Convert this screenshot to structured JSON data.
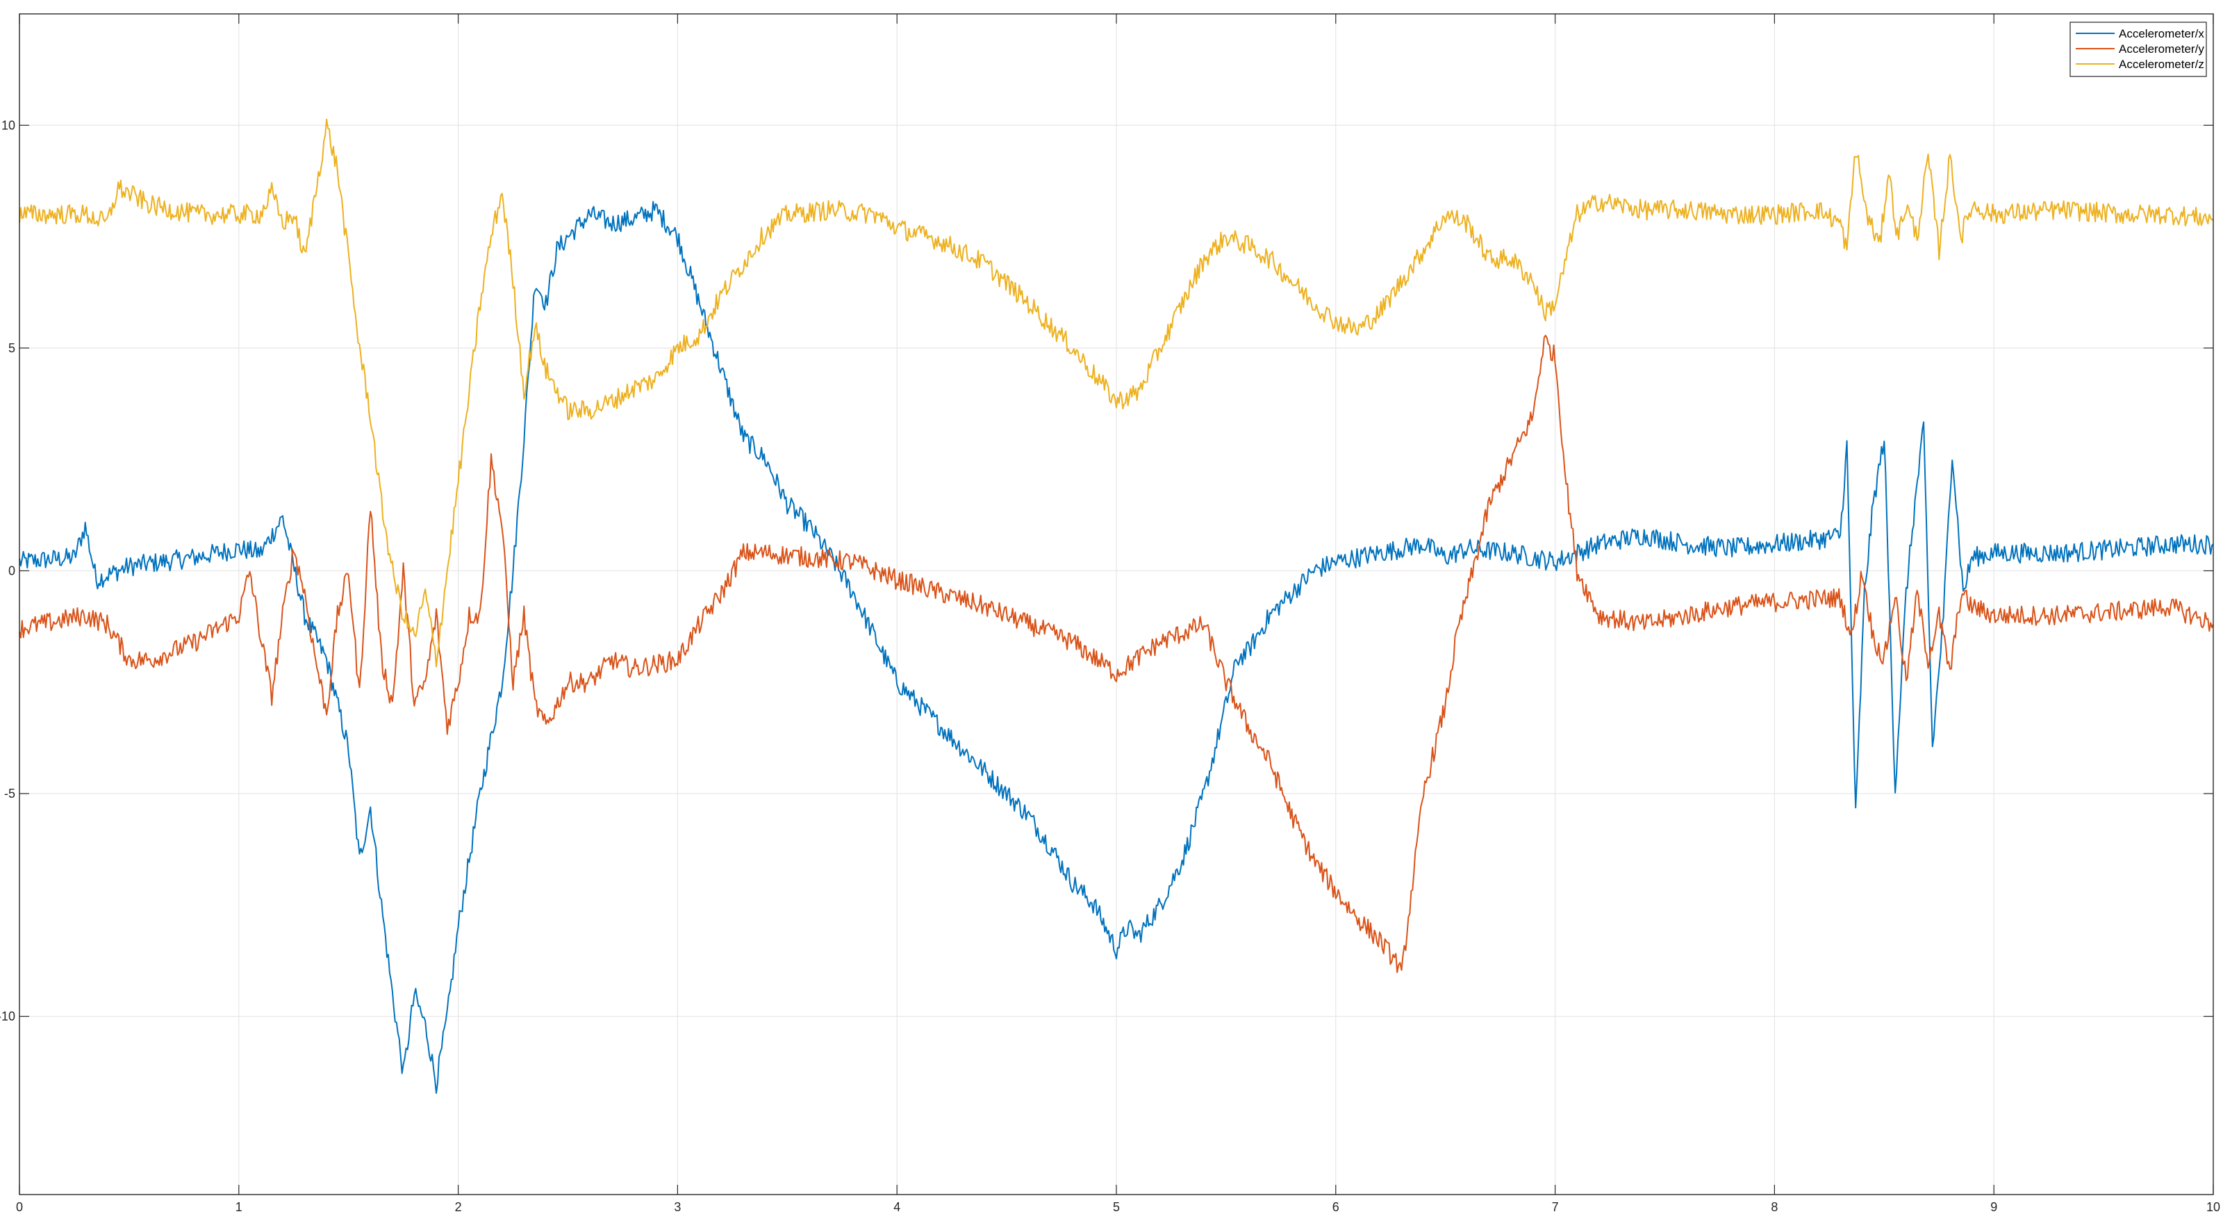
{
  "chart_data": {
    "type": "line",
    "xlim": [
      0,
      10
    ],
    "ylim": [
      -14,
      12.5
    ],
    "grid": true,
    "legend_placement": "top-right",
    "x_ticks": [
      0,
      1,
      2,
      3,
      4,
      5,
      6,
      7,
      8,
      9,
      10
    ],
    "x_tick_labels": [
      "0",
      "1",
      "2",
      "3",
      "4",
      "5",
      "6",
      "7",
      "8",
      "9",
      "10"
    ],
    "y_ticks": [
      10,
      5,
      0,
      -5,
      -10
    ],
    "y_tick_labels": [
      "10",
      "5",
      "0",
      "-5",
      "-10"
    ],
    "series": [
      {
        "name": "Accelerometer/x",
        "color": "#0072BD",
        "points": [
          [
            0,
            0.2
          ],
          [
            0.25,
            0.3
          ],
          [
            0.3,
            1.0
          ],
          [
            0.35,
            -0.2
          ],
          [
            0.5,
            0.1
          ],
          [
            0.8,
            0.3
          ],
          [
            1.0,
            0.5
          ],
          [
            1.1,
            0.4
          ],
          [
            1.2,
            1.2
          ],
          [
            1.3,
            -1.0
          ],
          [
            1.4,
            -2.0
          ],
          [
            1.5,
            -4.0
          ],
          [
            1.55,
            -6.5
          ],
          [
            1.6,
            -5.3
          ],
          [
            1.65,
            -7.5
          ],
          [
            1.7,
            -9.5
          ],
          [
            1.75,
            -11.3
          ],
          [
            1.8,
            -9.5
          ],
          [
            1.85,
            -10.2
          ],
          [
            1.9,
            -11.5
          ],
          [
            1.95,
            -10.0
          ],
          [
            2.0,
            -8.0
          ],
          [
            2.05,
            -6.5
          ],
          [
            2.1,
            -5.0
          ],
          [
            2.2,
            -2.5
          ],
          [
            2.25,
            0.0
          ],
          [
            2.3,
            3.0
          ],
          [
            2.35,
            6.5
          ],
          [
            2.4,
            6.0
          ],
          [
            2.45,
            7.2
          ],
          [
            2.5,
            7.5
          ],
          [
            2.6,
            8.0
          ],
          [
            2.7,
            7.8
          ],
          [
            2.8,
            7.9
          ],
          [
            2.9,
            8.1
          ],
          [
            3.0,
            7.5
          ],
          [
            3.1,
            6.0
          ],
          [
            3.2,
            4.5
          ],
          [
            3.3,
            3.0
          ],
          [
            3.4,
            2.5
          ],
          [
            3.5,
            1.5
          ],
          [
            3.6,
            1.0
          ],
          [
            3.7,
            0.3
          ],
          [
            3.8,
            -0.5
          ],
          [
            3.9,
            -1.5
          ],
          [
            4.0,
            -2.5
          ],
          [
            4.1,
            -3.0
          ],
          [
            4.2,
            -3.5
          ],
          [
            4.3,
            -4.0
          ],
          [
            4.4,
            -4.5
          ],
          [
            4.5,
            -5.0
          ],
          [
            4.6,
            -5.5
          ],
          [
            4.7,
            -6.2
          ],
          [
            4.8,
            -7.0
          ],
          [
            4.9,
            -7.5
          ],
          [
            5.0,
            -8.5
          ],
          [
            5.05,
            -8.0
          ],
          [
            5.1,
            -8.2
          ],
          [
            5.2,
            -7.5
          ],
          [
            5.3,
            -6.5
          ],
          [
            5.4,
            -5.0
          ],
          [
            5.45,
            -4.0
          ],
          [
            5.5,
            -3.0
          ],
          [
            5.55,
            -2.0
          ],
          [
            5.6,
            -1.8
          ],
          [
            5.7,
            -1.0
          ],
          [
            5.8,
            -0.5
          ],
          [
            5.9,
            0.0
          ],
          [
            6.0,
            0.2
          ],
          [
            6.2,
            0.4
          ],
          [
            6.4,
            0.6
          ],
          [
            6.5,
            0.3
          ],
          [
            6.6,
            0.5
          ],
          [
            6.8,
            0.4
          ],
          [
            7.0,
            0.2
          ],
          [
            7.2,
            0.6
          ],
          [
            7.4,
            0.8
          ],
          [
            7.6,
            0.6
          ],
          [
            7.8,
            0.5
          ],
          [
            8.0,
            0.6
          ],
          [
            8.2,
            0.7
          ],
          [
            8.3,
            0.8
          ],
          [
            8.33,
            2.8
          ],
          [
            8.37,
            -5.5
          ],
          [
            8.41,
            -0.5
          ],
          [
            8.45,
            1.5
          ],
          [
            8.5,
            3.0
          ],
          [
            8.55,
            -4.9
          ],
          [
            8.6,
            -0.5
          ],
          [
            8.64,
            1.5
          ],
          [
            8.68,
            3.2
          ],
          [
            8.72,
            -4.0
          ],
          [
            8.77,
            -1.0
          ],
          [
            8.81,
            2.7
          ],
          [
            8.86,
            -0.5
          ],
          [
            8.9,
            0.3
          ],
          [
            9.0,
            0.4
          ],
          [
            9.3,
            0.4
          ],
          [
            9.6,
            0.5
          ],
          [
            9.8,
            0.6
          ],
          [
            10.0,
            0.6
          ]
        ]
      },
      {
        "name": "Accelerometer/y",
        "color": "#D95319",
        "points": [
          [
            0,
            -1.3
          ],
          [
            0.3,
            -1.0
          ],
          [
            0.4,
            -1.2
          ],
          [
            0.5,
            -2.0
          ],
          [
            0.6,
            -2.0
          ],
          [
            0.8,
            -1.6
          ],
          [
            1.0,
            -1.0
          ],
          [
            1.05,
            0.0
          ],
          [
            1.1,
            -1.5
          ],
          [
            1.15,
            -2.8
          ],
          [
            1.2,
            -1.0
          ],
          [
            1.25,
            0.5
          ],
          [
            1.3,
            -0.5
          ],
          [
            1.35,
            -2.0
          ],
          [
            1.4,
            -3.2
          ],
          [
            1.45,
            -1.0
          ],
          [
            1.5,
            0.0
          ],
          [
            1.55,
            -2.8
          ],
          [
            1.6,
            1.5
          ],
          [
            1.65,
            -2.0
          ],
          [
            1.7,
            -3.0
          ],
          [
            1.75,
            0.0
          ],
          [
            1.8,
            -3.0
          ],
          [
            1.85,
            -2.5
          ],
          [
            1.9,
            -1.0
          ],
          [
            1.95,
            -3.5
          ],
          [
            2.0,
            -2.5
          ],
          [
            2.05,
            -1.0
          ],
          [
            2.1,
            -1.0
          ],
          [
            2.15,
            2.5
          ],
          [
            2.2,
            1.0
          ],
          [
            2.25,
            -2.5
          ],
          [
            2.3,
            -1.0
          ],
          [
            2.35,
            -3.0
          ],
          [
            2.4,
            -3.5
          ],
          [
            2.5,
            -2.5
          ],
          [
            2.6,
            -2.5
          ],
          [
            2.7,
            -2.0
          ],
          [
            2.8,
            -2.2
          ],
          [
            3.0,
            -2.0
          ],
          [
            3.1,
            -1.2
          ],
          [
            3.2,
            -0.5
          ],
          [
            3.3,
            0.4
          ],
          [
            3.4,
            0.4
          ],
          [
            3.6,
            0.3
          ],
          [
            3.8,
            0.2
          ],
          [
            4.0,
            -0.2
          ],
          [
            4.2,
            -0.5
          ],
          [
            4.4,
            -0.8
          ],
          [
            4.6,
            -1.2
          ],
          [
            4.8,
            -1.6
          ],
          [
            5.0,
            -2.3
          ],
          [
            5.2,
            -1.6
          ],
          [
            5.4,
            -1.2
          ],
          [
            5.5,
            -2.5
          ],
          [
            5.6,
            -3.5
          ],
          [
            5.7,
            -4.3
          ],
          [
            5.8,
            -5.5
          ],
          [
            5.9,
            -6.5
          ],
          [
            6.0,
            -7.2
          ],
          [
            6.1,
            -7.8
          ],
          [
            6.2,
            -8.3
          ],
          [
            6.28,
            -8.8
          ],
          [
            6.3,
            -9.1
          ],
          [
            6.35,
            -7.0
          ],
          [
            6.4,
            -5.0
          ],
          [
            6.5,
            -3.0
          ],
          [
            6.55,
            -1.5
          ],
          [
            6.6,
            -0.5
          ],
          [
            6.7,
            1.5
          ],
          [
            6.8,
            2.5
          ],
          [
            6.9,
            3.5
          ],
          [
            6.95,
            5.2
          ],
          [
            7.0,
            4.8
          ],
          [
            7.05,
            2.0
          ],
          [
            7.1,
            0.0
          ],
          [
            7.2,
            -1.0
          ],
          [
            7.4,
            -1.2
          ],
          [
            7.6,
            -1.0
          ],
          [
            7.8,
            -0.8
          ],
          [
            8.0,
            -0.7
          ],
          [
            8.3,
            -0.6
          ],
          [
            8.35,
            -1.5
          ],
          [
            8.4,
            0.0
          ],
          [
            8.45,
            -1.5
          ],
          [
            8.5,
            -2.0
          ],
          [
            8.55,
            -0.5
          ],
          [
            8.6,
            -2.5
          ],
          [
            8.65,
            -0.5
          ],
          [
            8.7,
            -2.0
          ],
          [
            8.75,
            -1.0
          ],
          [
            8.8,
            -2.3
          ],
          [
            8.85,
            -0.5
          ],
          [
            8.9,
            -0.8
          ],
          [
            9.0,
            -1.0
          ],
          [
            9.3,
            -1.0
          ],
          [
            9.6,
            -0.9
          ],
          [
            9.8,
            -0.8
          ],
          [
            10.0,
            -1.2
          ]
        ]
      },
      {
        "name": "Accelerometer/z",
        "color": "#EDB120",
        "points": [
          [
            0,
            8.0
          ],
          [
            0.3,
            8.0
          ],
          [
            0.4,
            7.8
          ],
          [
            0.45,
            8.6
          ],
          [
            0.6,
            8.2
          ],
          [
            0.8,
            8.0
          ],
          [
            1.0,
            8.0
          ],
          [
            1.1,
            8.0
          ],
          [
            1.15,
            8.5
          ],
          [
            1.2,
            7.8
          ],
          [
            1.25,
            8.0
          ],
          [
            1.3,
            7.0
          ],
          [
            1.35,
            8.5
          ],
          [
            1.4,
            10.0
          ],
          [
            1.45,
            9.0
          ],
          [
            1.5,
            7.0
          ],
          [
            1.55,
            5.0
          ],
          [
            1.6,
            3.5
          ],
          [
            1.65,
            1.5
          ],
          [
            1.7,
            0.0
          ],
          [
            1.75,
            -1.0
          ],
          [
            1.8,
            -1.5
          ],
          [
            1.85,
            -0.5
          ],
          [
            1.9,
            -2.0
          ],
          [
            1.95,
            0.0
          ],
          [
            2.0,
            2.0
          ],
          [
            2.05,
            4.0
          ],
          [
            2.1,
            6.0
          ],
          [
            2.15,
            7.5
          ],
          [
            2.2,
            8.5
          ],
          [
            2.25,
            6.5
          ],
          [
            2.3,
            4.0
          ],
          [
            2.35,
            5.5
          ],
          [
            2.4,
            4.5
          ],
          [
            2.5,
            3.6
          ],
          [
            2.6,
            3.6
          ],
          [
            2.7,
            3.8
          ],
          [
            2.8,
            4.1
          ],
          [
            2.9,
            4.3
          ],
          [
            3.0,
            5.0
          ],
          [
            3.1,
            5.3
          ],
          [
            3.2,
            6.2
          ],
          [
            3.3,
            6.9
          ],
          [
            3.4,
            7.6
          ],
          [
            3.5,
            8.0
          ],
          [
            3.7,
            8.1
          ],
          [
            3.9,
            8.0
          ],
          [
            4.0,
            7.7
          ],
          [
            4.2,
            7.4
          ],
          [
            4.4,
            6.9
          ],
          [
            4.6,
            6.0
          ],
          [
            4.8,
            5.0
          ],
          [
            5.0,
            3.8
          ],
          [
            5.1,
            4.0
          ],
          [
            5.2,
            5.0
          ],
          [
            5.3,
            6.0
          ],
          [
            5.4,
            7.0
          ],
          [
            5.5,
            7.5
          ],
          [
            5.6,
            7.3
          ],
          [
            5.7,
            7.0
          ],
          [
            5.8,
            6.5
          ],
          [
            5.9,
            6.0
          ],
          [
            6.0,
            5.6
          ],
          [
            6.1,
            5.4
          ],
          [
            6.2,
            5.8
          ],
          [
            6.3,
            6.5
          ],
          [
            6.4,
            7.2
          ],
          [
            6.5,
            8.0
          ],
          [
            6.6,
            7.8
          ],
          [
            6.7,
            7.0
          ],
          [
            6.8,
            7.0
          ],
          [
            6.9,
            6.5
          ],
          [
            6.95,
            5.8
          ],
          [
            7.0,
            6.0
          ],
          [
            7.05,
            7.0
          ],
          [
            7.1,
            8.0
          ],
          [
            7.2,
            8.3
          ],
          [
            7.4,
            8.1
          ],
          [
            7.6,
            8.1
          ],
          [
            7.8,
            8.0
          ],
          [
            8.0,
            8.0
          ],
          [
            8.2,
            8.1
          ],
          [
            8.3,
            7.8
          ],
          [
            8.33,
            7.2
          ],
          [
            8.37,
            9.5
          ],
          [
            8.42,
            8.0
          ],
          [
            8.48,
            7.3
          ],
          [
            8.52,
            9.0
          ],
          [
            8.56,
            7.5
          ],
          [
            8.6,
            8.2
          ],
          [
            8.65,
            7.5
          ],
          [
            8.7,
            9.3
          ],
          [
            8.75,
            7.2
          ],
          [
            8.8,
            9.3
          ],
          [
            8.85,
            7.5
          ],
          [
            8.9,
            8.2
          ],
          [
            9.0,
            8.0
          ],
          [
            9.3,
            8.1
          ],
          [
            9.6,
            8.0
          ],
          [
            9.8,
            8.0
          ],
          [
            10.0,
            7.9
          ]
        ]
      }
    ]
  }
}
